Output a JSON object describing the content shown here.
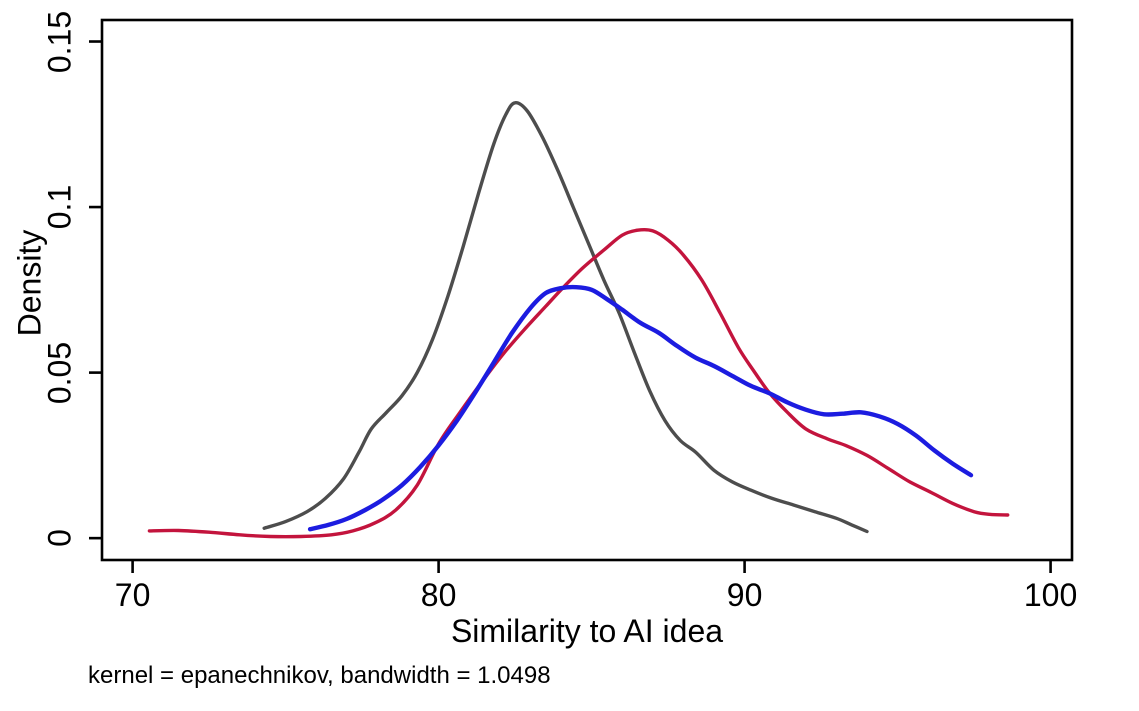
{
  "chart_data": {
    "type": "line",
    "title": "",
    "xlabel": "Similarity to AI idea",
    "ylabel": "Density",
    "note": "kernel = epanechnikov, bandwidth = 1.0498",
    "x_ticks": [
      70,
      80,
      90,
      100
    ],
    "y_ticks": [
      0,
      0.05,
      0.1,
      0.15
    ],
    "y_tick_labels": [
      "0",
      "0.05",
      "0.1",
      "0.15"
    ],
    "xlim": [
      69.0,
      100.7
    ],
    "ylim": [
      -0.0066,
      0.1565
    ],
    "grid": false,
    "legend": "none",
    "axis_color": "#000000",
    "series": [
      {
        "name": "gray",
        "color": "#4d4d4d",
        "points": [
          [
            74.3,
            0.003
          ],
          [
            75.0,
            0.005
          ],
          [
            75.7,
            0.008
          ],
          [
            76.3,
            0.012
          ],
          [
            76.9,
            0.018
          ],
          [
            77.4,
            0.026
          ],
          [
            77.8,
            0.033
          ],
          [
            78.3,
            0.038
          ],
          [
            78.8,
            0.043
          ],
          [
            79.3,
            0.05
          ],
          [
            79.8,
            0.06
          ],
          [
            80.3,
            0.073
          ],
          [
            80.8,
            0.088
          ],
          [
            81.3,
            0.104
          ],
          [
            81.8,
            0.119
          ],
          [
            82.2,
            0.128
          ],
          [
            82.5,
            0.1315
          ],
          [
            82.9,
            0.129
          ],
          [
            83.4,
            0.121
          ],
          [
            83.9,
            0.111
          ],
          [
            84.4,
            0.1
          ],
          [
            84.9,
            0.089
          ],
          [
            85.4,
            0.078
          ],
          [
            85.9,
            0.068
          ],
          [
            86.4,
            0.056
          ],
          [
            86.9,
            0.0445
          ],
          [
            87.4,
            0.0355
          ],
          [
            87.9,
            0.0295
          ],
          [
            88.4,
            0.026
          ],
          [
            89.0,
            0.0205
          ],
          [
            89.6,
            0.017
          ],
          [
            90.2,
            0.0145
          ],
          [
            90.9,
            0.012
          ],
          [
            91.6,
            0.01
          ],
          [
            92.3,
            0.008
          ],
          [
            93.0,
            0.006
          ],
          [
            93.5,
            0.004
          ],
          [
            94.0,
            0.002
          ]
        ]
      },
      {
        "name": "red",
        "color": "#c3143d",
        "points": [
          [
            70.55,
            0.0022
          ],
          [
            71.5,
            0.0023
          ],
          [
            72.5,
            0.0018
          ],
          [
            73.5,
            0.001
          ],
          [
            74.5,
            0.0005
          ],
          [
            75.5,
            0.0005
          ],
          [
            76.5,
            0.001
          ],
          [
            77.2,
            0.0022
          ],
          [
            77.9,
            0.0045
          ],
          [
            78.6,
            0.0085
          ],
          [
            79.3,
            0.016
          ],
          [
            80.0,
            0.0285
          ],
          [
            80.7,
            0.038
          ],
          [
            81.4,
            0.047
          ],
          [
            82.1,
            0.0555
          ],
          [
            82.8,
            0.063
          ],
          [
            83.5,
            0.07
          ],
          [
            84.0,
            0.075
          ],
          [
            84.7,
            0.0815
          ],
          [
            85.4,
            0.087
          ],
          [
            86.0,
            0.0915
          ],
          [
            86.5,
            0.093
          ],
          [
            87.0,
            0.0928
          ],
          [
            87.5,
            0.09
          ],
          [
            88.0,
            0.0855
          ],
          [
            88.6,
            0.078
          ],
          [
            89.2,
            0.068
          ],
          [
            89.8,
            0.0575
          ],
          [
            90.3,
            0.0505
          ],
          [
            90.8,
            0.044
          ],
          [
            91.4,
            0.038
          ],
          [
            92.0,
            0.033
          ],
          [
            92.7,
            0.03
          ],
          [
            93.3,
            0.028
          ],
          [
            94.0,
            0.025
          ],
          [
            94.7,
            0.021
          ],
          [
            95.4,
            0.017
          ],
          [
            96.1,
            0.0138
          ],
          [
            96.8,
            0.0105
          ],
          [
            97.5,
            0.008
          ],
          [
            98.0,
            0.0072
          ],
          [
            98.6,
            0.007
          ]
        ]
      },
      {
        "name": "blue",
        "color": "#1c1ce0",
        "points": [
          [
            75.8,
            0.0027
          ],
          [
            76.4,
            0.004
          ],
          [
            77.0,
            0.0058
          ],
          [
            77.6,
            0.0085
          ],
          [
            78.2,
            0.0118
          ],
          [
            78.8,
            0.016
          ],
          [
            79.4,
            0.0215
          ],
          [
            80.0,
            0.028
          ],
          [
            80.6,
            0.0355
          ],
          [
            81.2,
            0.044
          ],
          [
            81.8,
            0.053
          ],
          [
            82.4,
            0.062
          ],
          [
            83.0,
            0.0695
          ],
          [
            83.5,
            0.074
          ],
          [
            84.0,
            0.0755
          ],
          [
            84.5,
            0.0758
          ],
          [
            85.0,
            0.075
          ],
          [
            85.5,
            0.0722
          ],
          [
            86.0,
            0.069
          ],
          [
            86.6,
            0.065
          ],
          [
            87.2,
            0.062
          ],
          [
            87.8,
            0.058
          ],
          [
            88.4,
            0.0545
          ],
          [
            89.0,
            0.052
          ],
          [
            89.6,
            0.049
          ],
          [
            90.2,
            0.046
          ],
          [
            90.8,
            0.0438
          ],
          [
            91.4,
            0.041
          ],
          [
            92.0,
            0.0388
          ],
          [
            92.6,
            0.0374
          ],
          [
            93.2,
            0.0376
          ],
          [
            93.8,
            0.038
          ],
          [
            94.4,
            0.0368
          ],
          [
            95.0,
            0.0345
          ],
          [
            95.6,
            0.031
          ],
          [
            96.2,
            0.0265
          ],
          [
            96.8,
            0.0225
          ],
          [
            97.4,
            0.019
          ]
        ]
      }
    ]
  }
}
